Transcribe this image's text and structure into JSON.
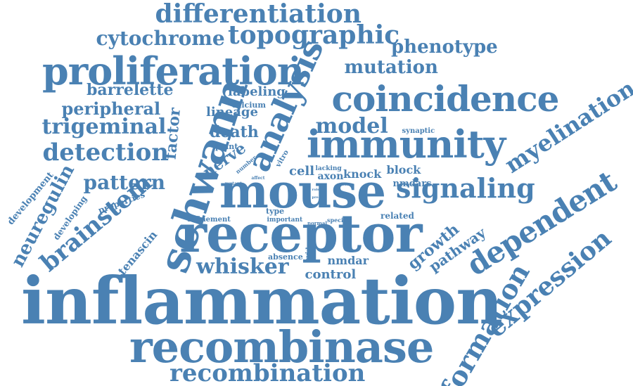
{
  "accent": "#4a81b3",
  "words": [
    "inflammation",
    "recombinase",
    "receptor",
    "mouse",
    "schwann",
    "immunity",
    "proliferation",
    "coincidence",
    "analysis",
    "signaling",
    "dependent",
    "expression",
    "recombination",
    "formation",
    "myelination",
    "differentiation",
    "topographic",
    "brainstem",
    "detection",
    "whisker",
    "trigeminal",
    "model",
    "cytochrome",
    "mutation",
    "phenotype",
    "neuregulin",
    "pattern",
    "barrelette",
    "peripheral",
    "factor",
    "growth",
    "pathway",
    "death",
    "labeling",
    "lineage",
    "nerve",
    "control",
    "nmdar",
    "tenascin",
    "development",
    "developing",
    "properties",
    "cell",
    "axon",
    "knock",
    "block",
    "nmdars",
    "calcium",
    "point",
    "synaptic",
    "refinement",
    "type",
    "important",
    "specific",
    "related",
    "absence",
    "evidence",
    "vitro",
    "lacking",
    "number",
    "mutant",
    "affect",
    "normal",
    "result",
    "role",
    "pre"
  ]
}
